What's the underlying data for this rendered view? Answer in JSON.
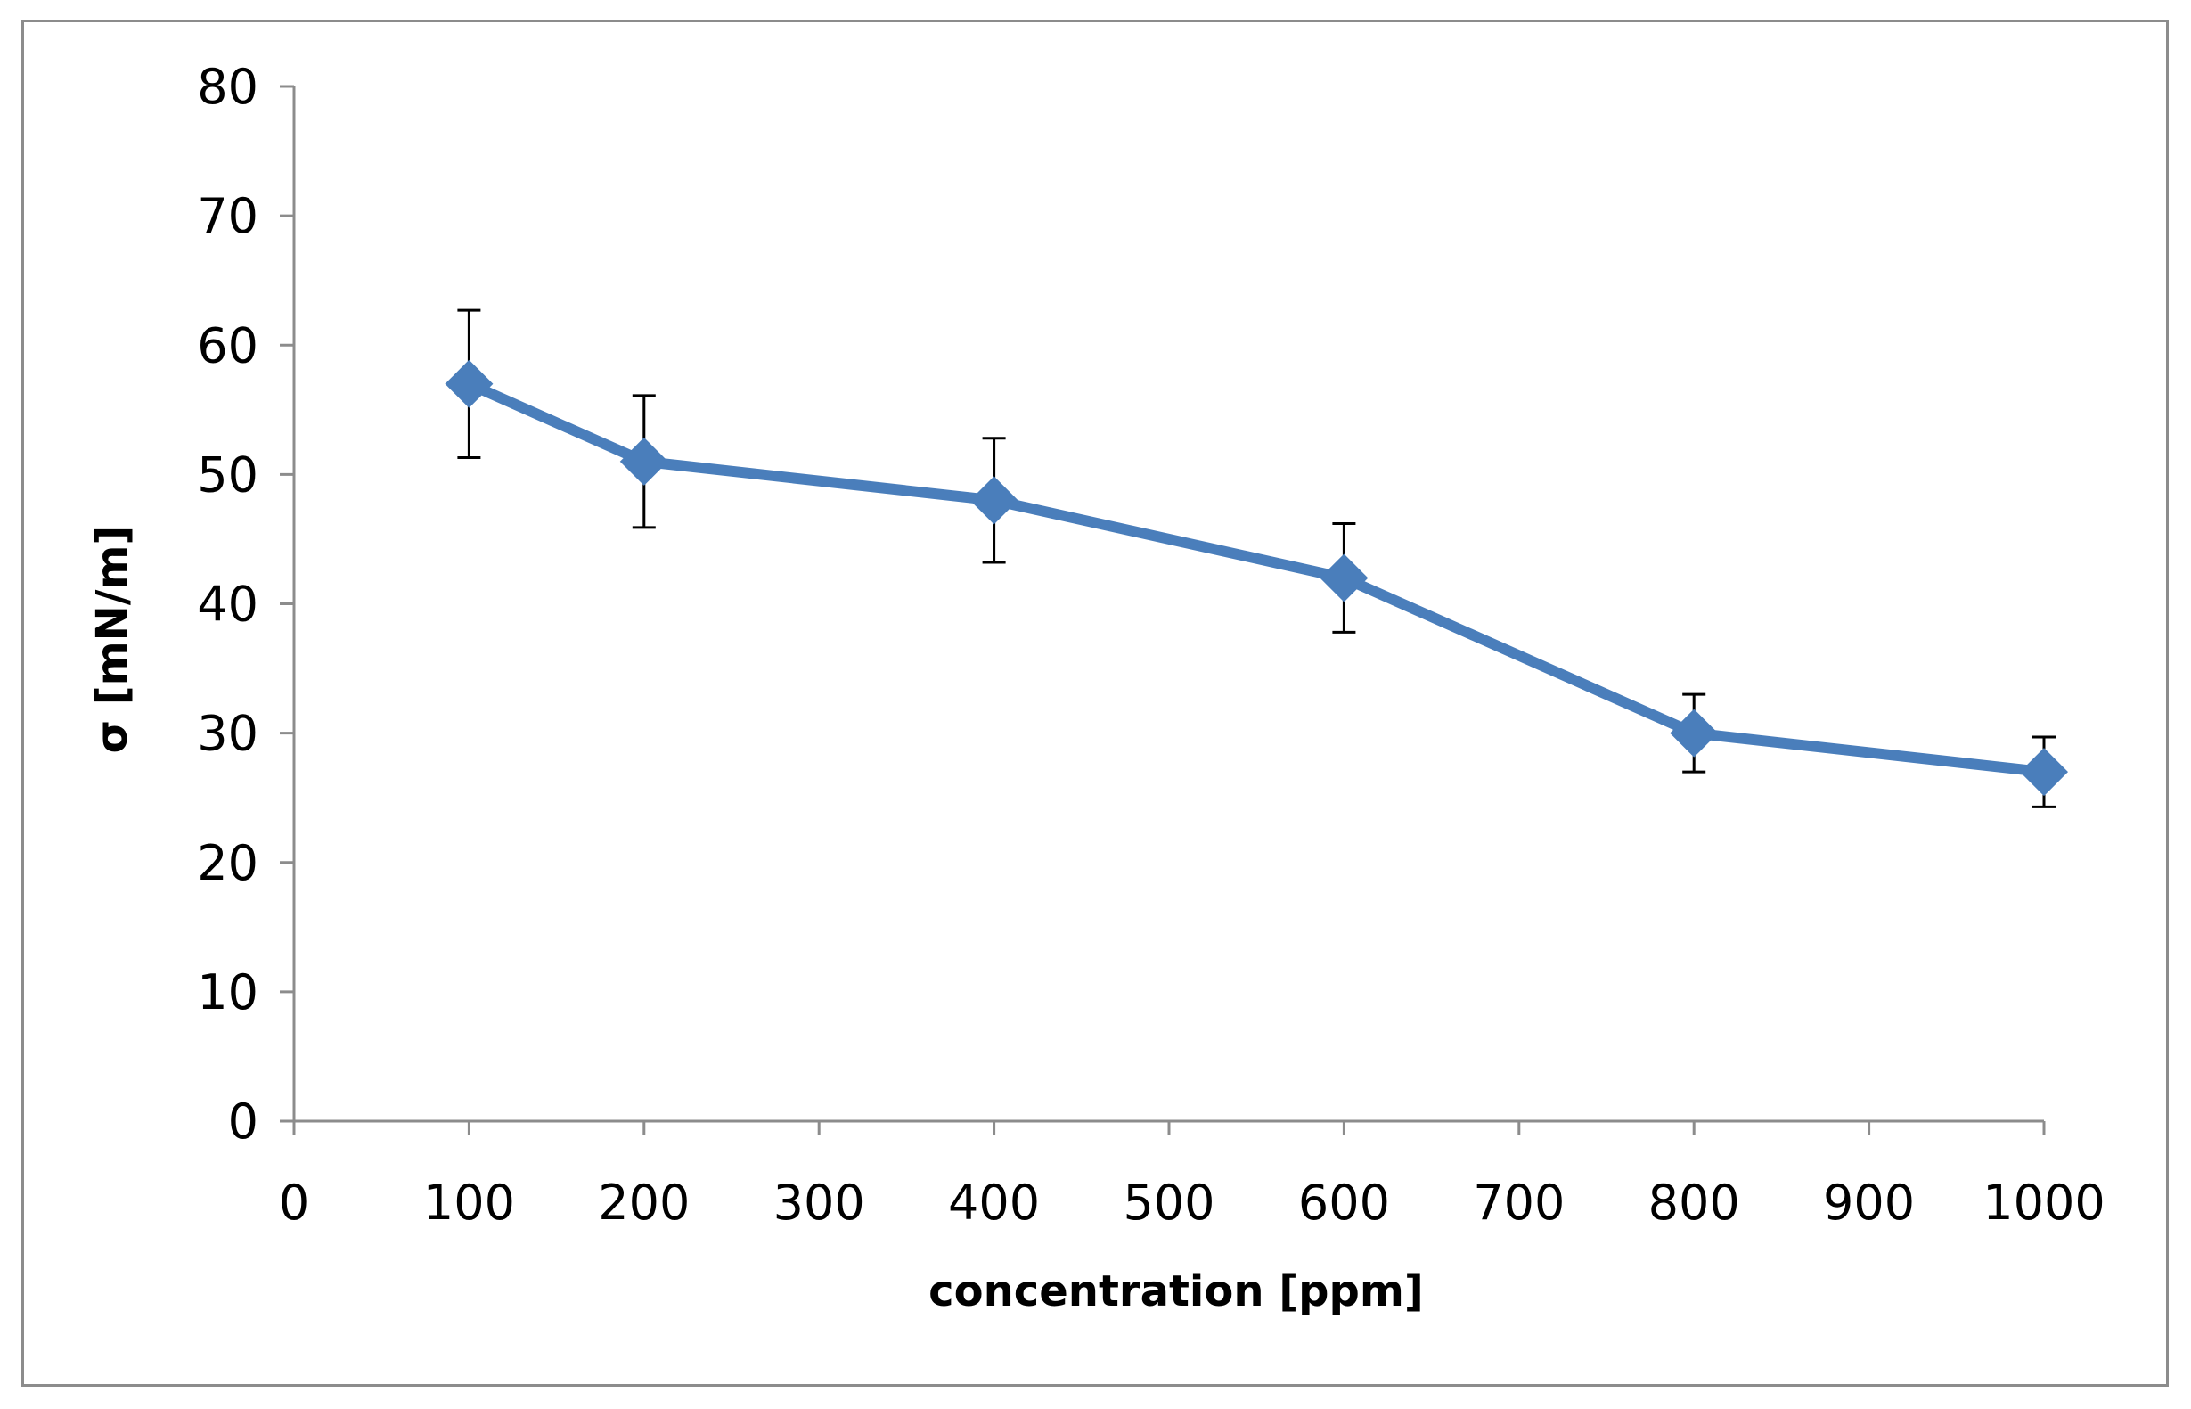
{
  "chart_data": {
    "type": "line",
    "title": "",
    "xlabel": "concentration [ppm]",
    "ylabel": "σ [mN/m]",
    "ylim": [
      0,
      80
    ],
    "yticks": [
      "0",
      "10",
      "20",
      "30",
      "40",
      "50",
      "60",
      "70",
      "80"
    ],
    "categories": [
      "0",
      "100",
      "200",
      "300",
      "400",
      "500",
      "600",
      "700",
      "800",
      "900",
      "1000"
    ],
    "grid": false,
    "legend": "none",
    "series": [
      {
        "name": "σ",
        "color": "#4a7ebb",
        "marker": "diamond",
        "x": [
          "100",
          "200",
          "400",
          "600",
          "800",
          "1000"
        ],
        "values": [
          57,
          51,
          48,
          42,
          30,
          27
        ],
        "error": [
          5.7,
          5.1,
          4.8,
          4.2,
          3.0,
          2.7
        ]
      }
    ]
  }
}
